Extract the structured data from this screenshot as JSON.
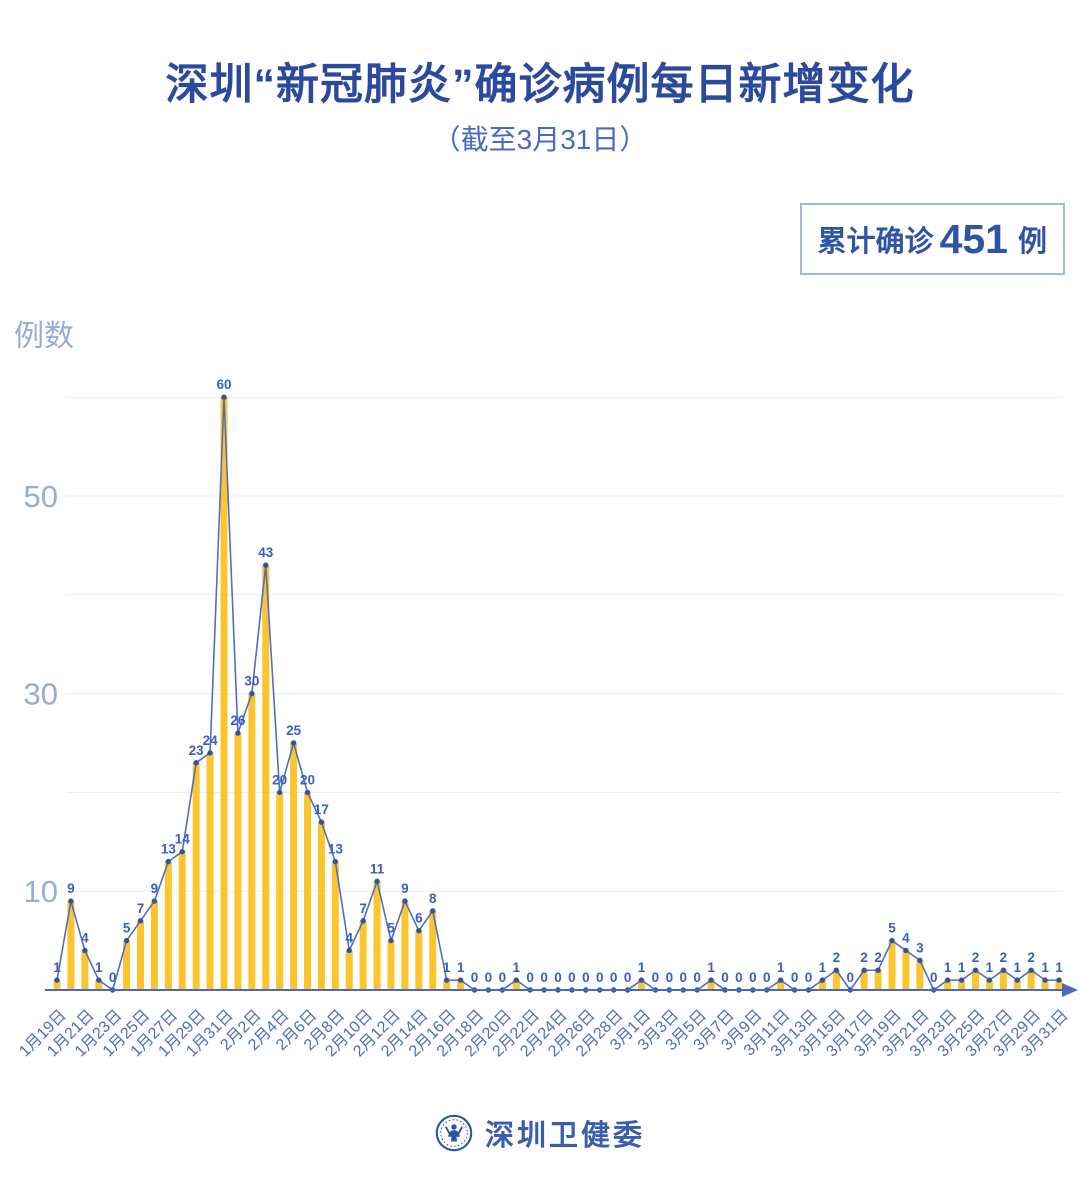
{
  "header": {
    "title": "深圳“新冠肺炎”确诊病例每日新增变化",
    "subtitle": "（截至3月31日）"
  },
  "badge": {
    "prefix": "累计确诊",
    "value": "451",
    "suffix": "例"
  },
  "y_axis_title": "例数",
  "footer": {
    "org_name": "深圳卫健委"
  },
  "colors": {
    "title": "#2b4a9e",
    "subtitle": "#4a6abf",
    "badge_text": "#2e55a5",
    "badge_border": "#a3b6de",
    "bar": "#fdc52d",
    "line": "#4f6fc0",
    "marker": "#2e55a5",
    "data_label": "#3b5ec4",
    "axis": "#4a69bd",
    "x_label": "#4f6bbf",
    "y_label": "#9aabd8",
    "gridline": "#ececf1",
    "footer": "#3a5dae",
    "background": "#ffffff"
  },
  "chart_data": {
    "type": "bar",
    "line_overlay": true,
    "show_data_labels": true,
    "title": "深圳“新冠肺炎”确诊病例每日新增变化",
    "subtitle": "（截至3月31日）",
    "xlabel": "",
    "ylabel": "例数",
    "ylim": [
      0,
      62
    ],
    "yticks_labeled": [
      10,
      30,
      50
    ],
    "gridlines": [
      10,
      20,
      30,
      40,
      50,
      60
    ],
    "legend": null,
    "annotations": [
      "累计确诊 451 例"
    ],
    "x_tick_every": 2,
    "x_tick_labels": [
      "1月19日",
      "1月21日",
      "1月23日",
      "1月25日",
      "1月27日",
      "1月29日",
      "1月31日",
      "2月2日",
      "2月4日",
      "2月6日",
      "2月8日",
      "2月10日",
      "2月12日",
      "2月14日",
      "2月16日",
      "2月18日",
      "2月20日",
      "2月22日",
      "2月24日",
      "2月26日",
      "2月28日",
      "3月1日",
      "3月3日",
      "3月5日",
      "3月7日",
      "3月9日",
      "3月11日",
      "3月13日",
      "3月15日",
      "3月17日",
      "3月19日",
      "3月21日",
      "3月23日",
      "3月25日",
      "3月27日",
      "3月29日",
      "3月31日"
    ],
    "categories": [
      "1月19日",
      "1月20日",
      "1月21日",
      "1月22日",
      "1月23日",
      "1月24日",
      "1月25日",
      "1月26日",
      "1月27日",
      "1月28日",
      "1月29日",
      "1月30日",
      "1月31日",
      "2月1日",
      "2月2日",
      "2月3日",
      "2月4日",
      "2月5日",
      "2月6日",
      "2月7日",
      "2月8日",
      "2月9日",
      "2月10日",
      "2月11日",
      "2月12日",
      "2月13日",
      "2月14日",
      "2月15日",
      "2月16日",
      "2月17日",
      "2月18日",
      "2月19日",
      "2月20日",
      "2月21日",
      "2月22日",
      "2月23日",
      "2月24日",
      "2月25日",
      "2月26日",
      "2月27日",
      "2月28日",
      "2月29日",
      "3月1日",
      "3月2日",
      "3月3日",
      "3月4日",
      "3月5日",
      "3月6日",
      "3月7日",
      "3月8日",
      "3月9日",
      "3月10日",
      "3月11日",
      "3月12日",
      "3月13日",
      "3月14日",
      "3月15日",
      "3月16日",
      "3月17日",
      "3月18日",
      "3月19日",
      "3月20日",
      "3月21日",
      "3月22日",
      "3月23日",
      "3月24日",
      "3月25日",
      "3月26日",
      "3月27日",
      "3月28日",
      "3月29日",
      "3月30日",
      "3月31日"
    ],
    "values": [
      1,
      9,
      4,
      1,
      0,
      5,
      7,
      9,
      13,
      14,
      23,
      24,
      60,
      26,
      30,
      43,
      20,
      25,
      20,
      17,
      13,
      4,
      7,
      11,
      5,
      9,
      6,
      8,
      1,
      1,
      0,
      0,
      0,
      1,
      0,
      0,
      0,
      0,
      0,
      0,
      0,
      0,
      1,
      0,
      0,
      0,
      0,
      1,
      0,
      0,
      0,
      0,
      1,
      0,
      0,
      1,
      2,
      0,
      2,
      2,
      5,
      4,
      3,
      0,
      1,
      1,
      2,
      1,
      2,
      1,
      2,
      1,
      1
    ],
    "total": 451
  }
}
